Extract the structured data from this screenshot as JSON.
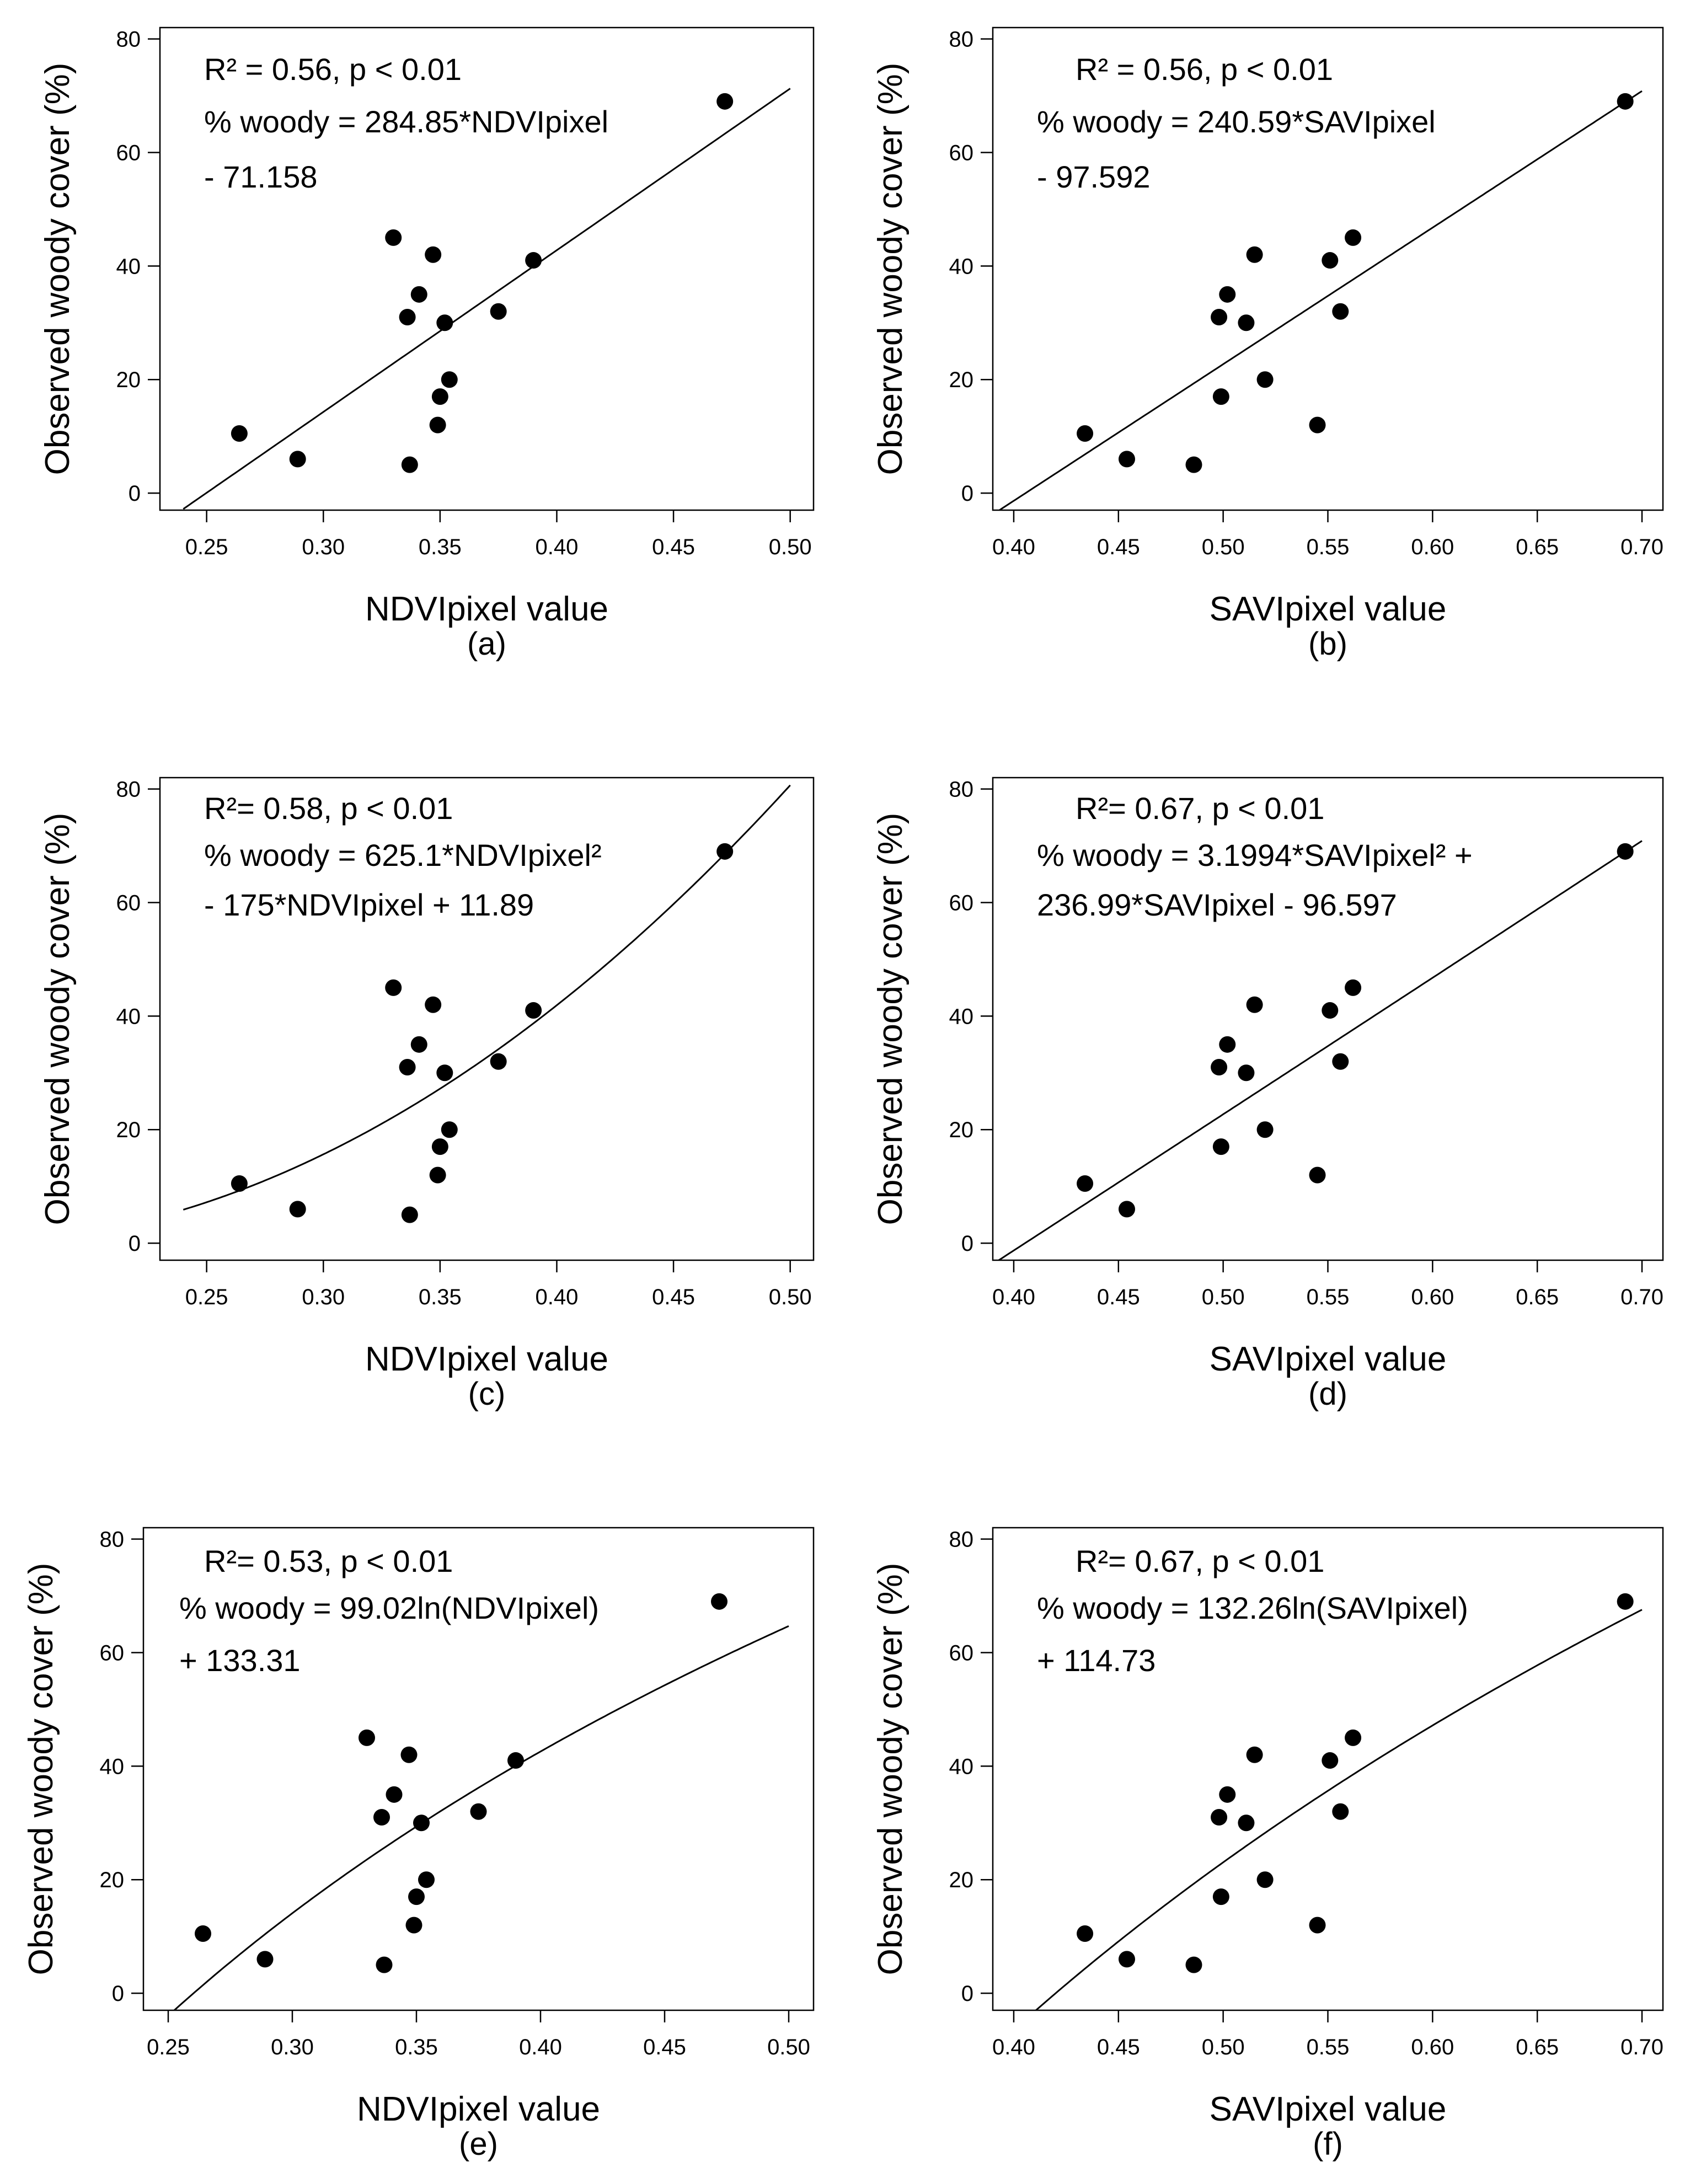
{
  "chart_data": [
    {
      "panel": "(a)",
      "type": "scatter",
      "fit": "linear",
      "xlabel": "NDVIpixel value",
      "ylabel": "Observed woody cover (%)",
      "xlim": [
        0.23,
        0.51
      ],
      "ylim": [
        -3,
        82
      ],
      "xticks": [
        "0.25",
        "0.30",
        "0.35",
        "0.40",
        "0.45",
        "0.50"
      ],
      "yticks": [
        "0",
        "20",
        "40",
        "60",
        "80"
      ],
      "annotations": [
        "R² = 0.56, p < 0.01",
        "% woody = 284.85*NDVIpixel",
        "- 71.158"
      ],
      "coef": [
        -71.158,
        284.85
      ],
      "x": [
        0.264,
        0.289,
        0.33,
        0.336,
        0.337,
        0.341,
        0.347,
        0.349,
        0.35,
        0.352,
        0.354,
        0.375,
        0.39,
        0.472
      ],
      "y": [
        10.5,
        6,
        45,
        31,
        5,
        35,
        42,
        12,
        17,
        30,
        20,
        32,
        41,
        69
      ]
    },
    {
      "panel": "(b)",
      "type": "scatter",
      "fit": "linear",
      "xlabel": "SAVIpixel value",
      "ylabel": "Observed woody cover (%)",
      "xlim": [
        0.39,
        0.71
      ],
      "ylim": [
        -3,
        82
      ],
      "xticks": [
        "0.40",
        "0.45",
        "0.50",
        "0.55",
        "0.60",
        "0.65",
        "0.70"
      ],
      "yticks": [
        "0",
        "20",
        "40",
        "60",
        "80"
      ],
      "annotations": [
        "R² = 0.56, p < 0.01",
        "% woody = 240.59*SAVIpixel",
        "- 97.592"
      ],
      "coef": [
        -97.592,
        240.59
      ],
      "x": [
        0.434,
        0.454,
        0.486,
        0.498,
        0.499,
        0.502,
        0.511,
        0.515,
        0.52,
        0.545,
        0.551,
        0.556,
        0.562,
        0.692
      ],
      "y": [
        10.5,
        6,
        5,
        31,
        17,
        35,
        30,
        42,
        20,
        12,
        41,
        32,
        45,
        69
      ]
    },
    {
      "panel": "(c)",
      "type": "scatter",
      "fit": "poly2",
      "xlabel": "NDVIpixel value",
      "ylabel": "Observed woody cover (%)",
      "xlim": [
        0.23,
        0.51
      ],
      "ylim": [
        -3,
        82
      ],
      "xticks": [
        "0.25",
        "0.30",
        "0.35",
        "0.40",
        "0.45",
        "0.50"
      ],
      "yticks": [
        "0",
        "20",
        "40",
        "60",
        "80"
      ],
      "annotations": [
        "R²= 0.58, p < 0.01",
        "% woody = 625.1*NDVIpixel²",
        "- 175*NDVIpixel + 11.89"
      ],
      "coef": [
        11.89,
        -175,
        625.1
      ],
      "x": [
        0.264,
        0.289,
        0.33,
        0.336,
        0.337,
        0.341,
        0.347,
        0.349,
        0.35,
        0.352,
        0.354,
        0.375,
        0.39,
        0.472
      ],
      "y": [
        10.5,
        6,
        45,
        31,
        5,
        35,
        42,
        12,
        17,
        30,
        20,
        32,
        41,
        69
      ]
    },
    {
      "panel": "(d)",
      "type": "scatter",
      "fit": "poly2",
      "xlabel": "SAVIpixel value",
      "ylabel": "Observed woody cover (%)",
      "xlim": [
        0.39,
        0.71
      ],
      "ylim": [
        -3,
        82
      ],
      "xticks": [
        "0.40",
        "0.45",
        "0.50",
        "0.55",
        "0.60",
        "0.65",
        "0.70"
      ],
      "yticks": [
        "0",
        "20",
        "40",
        "60",
        "80"
      ],
      "annotations": [
        "R²= 0.67, p < 0.01",
        "% woody = 3.1994*SAVIpixel² +",
        "236.99*SAVIpixel - 96.597"
      ],
      "coef": [
        -96.597,
        236.99,
        3.1994
      ],
      "x": [
        0.434,
        0.454,
        0.498,
        0.499,
        0.502,
        0.511,
        0.515,
        0.52,
        0.545,
        0.551,
        0.556,
        0.562,
        0.692
      ],
      "y": [
        10.5,
        6,
        31,
        17,
        35,
        30,
        42,
        20,
        12,
        41,
        32,
        45,
        69
      ]
    },
    {
      "panel": "(e)",
      "type": "scatter",
      "fit": "log",
      "xlabel": "NDVIpixel value",
      "ylabel": "Observed woody cover (%)",
      "xlim": [
        0.24,
        0.51
      ],
      "ylim": [
        -3,
        82
      ],
      "xticks": [
        "0.25",
        "0.30",
        "0.35",
        "0.40",
        "0.45",
        "0.50"
      ],
      "yticks": [
        "0",
        "20",
        "40",
        "60",
        "80"
      ],
      "annotations": [
        "R²= 0.53, p < 0.01",
        "% woody = 99.02ln(NDVIpixel)",
        "+ 133.31"
      ],
      "coef": [
        133.31,
        99.02
      ],
      "x": [
        0.264,
        0.289,
        0.33,
        0.336,
        0.337,
        0.341,
        0.347,
        0.349,
        0.35,
        0.352,
        0.354,
        0.375,
        0.39,
        0.472
      ],
      "y": [
        10.5,
        6,
        45,
        31,
        5,
        35,
        42,
        12,
        17,
        30,
        20,
        32,
        41,
        69
      ]
    },
    {
      "panel": "(f)",
      "type": "scatter",
      "fit": "log",
      "xlabel": "SAVIpixel value",
      "ylabel": "Observed woody cover (%)",
      "xlim": [
        0.39,
        0.71
      ],
      "ylim": [
        -3,
        82
      ],
      "xticks": [
        "0.40",
        "0.45",
        "0.50",
        "0.55",
        "0.60",
        "0.65",
        "0.70"
      ],
      "yticks": [
        "0",
        "20",
        "40",
        "60",
        "80"
      ],
      "annotations": [
        "R²= 0.67, p < 0.01",
        "% woody = 132.26ln(SAVIpixel)",
        "+ 114.73"
      ],
      "coef": [
        114.73,
        132.26
      ],
      "x": [
        0.434,
        0.454,
        0.486,
        0.498,
        0.499,
        0.502,
        0.511,
        0.515,
        0.52,
        0.545,
        0.551,
        0.556,
        0.562,
        0.692
      ],
      "y": [
        10.5,
        6,
        5,
        31,
        17,
        35,
        30,
        42,
        20,
        12,
        41,
        32,
        45,
        69
      ]
    }
  ]
}
